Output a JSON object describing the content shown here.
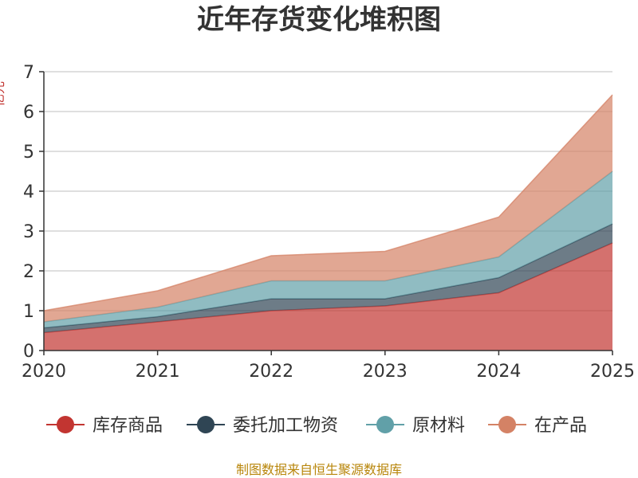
{
  "chart_data": {
    "type": "area",
    "stacked": true,
    "title": "近年存货变化堆积图",
    "ylabel": "亿元",
    "x": [
      "2020",
      "2021",
      "2022",
      "2023",
      "2024",
      "2025"
    ],
    "ylim": [
      0,
      7
    ],
    "yticks": [
      0,
      1,
      2,
      3,
      4,
      5,
      6,
      7
    ],
    "grid": true,
    "legend_position": "bottom",
    "series": [
      {
        "name": "库存商品",
        "color": "#c23531",
        "values": [
          0.45,
          0.72,
          1.0,
          1.12,
          1.45,
          2.7
        ]
      },
      {
        "name": "委托加工物资",
        "color": "#2f4554",
        "values": [
          0.12,
          0.13,
          0.3,
          0.18,
          0.38,
          0.48
        ]
      },
      {
        "name": "原材料",
        "color": "#61a0a8",
        "values": [
          0.15,
          0.24,
          0.45,
          0.45,
          0.52,
          1.32
        ]
      },
      {
        "name": "在产品",
        "color": "#d48265",
        "values": [
          0.28,
          0.41,
          0.63,
          0.74,
          1.0,
          1.92
        ]
      }
    ]
  },
  "source_note": "制图数据来自恒生聚源数据库"
}
